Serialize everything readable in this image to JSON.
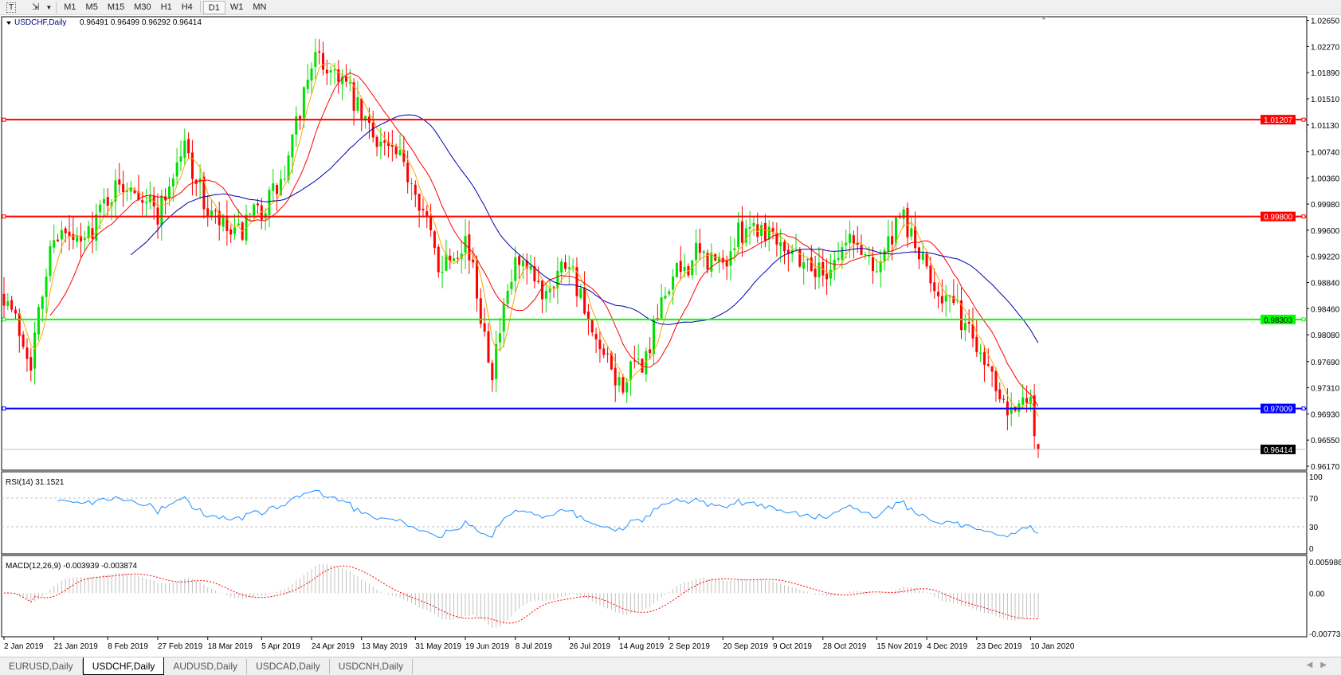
{
  "toolbar": {
    "icons": [
      "text-tool-icon",
      "objects-tool-icon",
      "dropdown-arrow-icon"
    ],
    "timeframes": [
      "M1",
      "M5",
      "M15",
      "M30",
      "H1",
      "H4",
      "D1",
      "W1",
      "MN"
    ],
    "selected": "D1"
  },
  "chart": {
    "symbol_label": "USDCHF,Daily",
    "ohlc_label": "0.96491 0.96499 0.96292 0.96414",
    "last_bar": {
      "open": 0.96491,
      "high": 0.96499,
      "low": 0.96292,
      "close": 0.96414
    },
    "price_ticks": [
      "1.02650",
      "1.02270",
      "1.01890",
      "1.01510",
      "1.01130",
      "1.00740",
      "1.00360",
      "0.99980",
      "0.99600",
      "0.99220",
      "0.98840",
      "0.98460",
      "0.98080",
      "0.97690",
      "0.97310",
      "0.96930",
      "0.96550",
      "0.96170"
    ],
    "price_range": [
      0.9617,
      1.0265
    ],
    "current_price": {
      "value": 0.96414,
      "label": "0.96414",
      "color": "#000000"
    },
    "levels": [
      {
        "value": 1.01207,
        "label": "1.01207",
        "color": "#ff0000"
      },
      {
        "value": 0.998,
        "label": "0.99800",
        "color": "#ff0000"
      },
      {
        "value": 0.98303,
        "label": "0.98303",
        "color": "#00ff00"
      },
      {
        "value": 0.97009,
        "label": "0.97009",
        "color": "#0000ff"
      }
    ],
    "colors": {
      "bull": "#00e000",
      "bear": "#ff0000",
      "ma_fast": "#ffa500",
      "ma_mid": "#ff0000",
      "ma_slow": "#0000aa",
      "rsi": "#1e90ff",
      "macd_hist": "#c0c0c0",
      "macd_signal": "#ff0000"
    },
    "date_labels": [
      [
        "2019-01-02",
        "2 Jan 2019"
      ],
      [
        "2019-01-21",
        "21 Jan 2019"
      ],
      [
        "2019-02-08",
        "8 Feb 2019"
      ],
      [
        "2019-02-27",
        "27 Feb 2019"
      ],
      [
        "2019-03-18",
        "18 Mar 2019"
      ],
      [
        "2019-04-05",
        "5 Apr 2019"
      ],
      [
        "2019-04-24",
        "24 Apr 2019"
      ],
      [
        "2019-05-13",
        "13 May 2019"
      ],
      [
        "2019-05-31",
        "31 May 2019"
      ],
      [
        "2019-06-19",
        "19 Jun 2019"
      ],
      [
        "2019-07-08",
        "8 Jul 2019"
      ],
      [
        "2019-07-26",
        "26 Jul 2019"
      ],
      [
        "2019-08-14",
        "14 Aug 2019"
      ],
      [
        "2019-09-02",
        "2 Sep 2019"
      ],
      [
        "2019-09-20",
        "20 Sep 2019"
      ],
      [
        "2019-10-09",
        "9 Oct 2019"
      ],
      [
        "2019-10-28",
        "28 Oct 2019"
      ],
      [
        "2019-11-15",
        "15 Nov 2019"
      ],
      [
        "2019-12-04",
        "4 Dec 2019"
      ],
      [
        "2019-12-23",
        "23 Dec 2019"
      ],
      [
        "2020-01-10",
        "10 Jan 2020"
      ]
    ],
    "price_path": [
      [
        "2019-01-02",
        0.987
      ],
      [
        "2019-01-11",
        0.9773
      ],
      [
        "2019-01-21",
        0.996
      ],
      [
        "2019-01-30",
        0.9935
      ],
      [
        "2019-02-08",
        1.001
      ],
      [
        "2019-02-18",
        1.0034
      ],
      [
        "2019-02-27",
        0.9985
      ],
      [
        "2019-03-08",
        1.0084
      ],
      [
        "2019-03-18",
        0.9985
      ],
      [
        "2019-03-27",
        0.9947
      ],
      [
        "2019-04-05",
        0.9991
      ],
      [
        "2019-04-15",
        1.0034
      ],
      [
        "2019-04-24",
        1.0209
      ],
      [
        "2019-05-03",
        1.019
      ],
      [
        "2019-05-13",
        1.0122
      ],
      [
        "2019-05-22",
        1.0078
      ],
      [
        "2019-05-31",
        1.0028
      ],
      [
        "2019-06-10",
        0.991
      ],
      [
        "2019-06-19",
        0.995
      ],
      [
        "2019-06-28",
        0.976
      ],
      [
        "2019-07-08",
        0.991
      ],
      [
        "2019-07-17",
        0.9872
      ],
      [
        "2019-07-26",
        0.9922
      ],
      [
        "2019-08-05",
        0.9798
      ],
      [
        "2019-08-14",
        0.9735
      ],
      [
        "2019-08-23",
        0.9773
      ],
      [
        "2019-09-02",
        0.9885
      ],
      [
        "2019-09-11",
        0.9922
      ],
      [
        "2019-09-20",
        0.991
      ],
      [
        "2019-09-30",
        0.9972
      ],
      [
        "2019-10-09",
        0.996
      ],
      [
        "2019-10-18",
        0.9922
      ],
      [
        "2019-10-28",
        0.9897
      ],
      [
        "2019-11-06",
        0.9947
      ],
      [
        "2019-11-15",
        0.991
      ],
      [
        "2019-11-26",
        0.9978
      ],
      [
        "2019-12-04",
        0.9897
      ],
      [
        "2019-12-13",
        0.9848
      ],
      [
        "2019-12-23",
        0.9798
      ],
      [
        "2020-01-02",
        0.971
      ],
      [
        "2020-01-10",
        0.9704
      ],
      [
        "2020-01-14",
        0.96414
      ]
    ]
  },
  "rsi": {
    "label": "RSI(14) 31.1521",
    "period": 14,
    "ticks": [
      "100",
      "70",
      "30",
      "0"
    ],
    "levels": [
      70,
      30
    ]
  },
  "macd": {
    "label": "MACD(12,26,9) -0.003939 -0.003874",
    "ticks": [
      "0.005986",
      "0.00",
      "-0.007737"
    ],
    "range": [
      -0.007737,
      0.005986
    ]
  },
  "tabs": [
    {
      "label": "EURUSD,Daily"
    },
    {
      "label": "USDCHF,Daily",
      "selected": true
    },
    {
      "label": "AUDUSD,Daily"
    },
    {
      "label": "USDCAD,Daily"
    },
    {
      "label": "USDCNH,Daily"
    }
  ]
}
